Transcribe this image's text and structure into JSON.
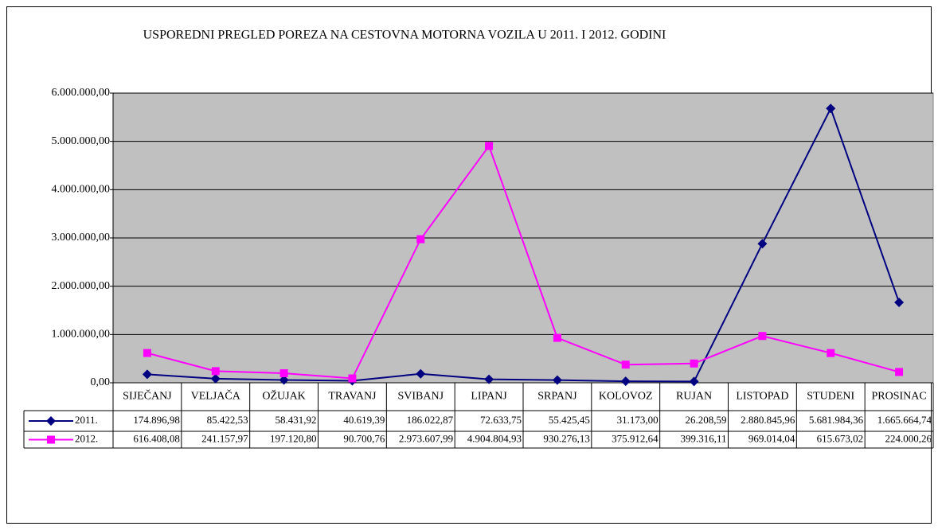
{
  "chart_data": {
    "type": "line",
    "title": "USPOREDNI PREGLED POREZA NA CESTOVNA MOTORNA VOZILA U 2011. I 2012. GODINI",
    "categories": [
      "SIJEČANJ",
      "VELJAČA",
      "OŽUJAK",
      "TRAVANJ",
      "SVIBANJ",
      "LIPANJ",
      "SRPANJ",
      "KOLOVOZ",
      "RUJAN",
      "LISTOPAD",
      "STUDENI",
      "PROSINAC"
    ],
    "series": [
      {
        "name": "2011.",
        "color": "#000080",
        "marker": "diamond",
        "values": [
          174896.98,
          85422.53,
          58431.92,
          40619.39,
          186022.87,
          72633.75,
          55425.45,
          31173.0,
          26208.59,
          2880845.96,
          5681984.36,
          1665664.74
        ],
        "value_labels": [
          "174.896,98",
          "85.422,53",
          "58.431,92",
          "40.619,39",
          "186.022,87",
          "72.633,75",
          "55.425,45",
          "31.173,00",
          "26.208,59",
          "2.880.845,96",
          "5.681.984,36",
          "1.665.664,74"
        ]
      },
      {
        "name": "2012.",
        "color": "#ff00ff",
        "marker": "square",
        "values": [
          616408.08,
          241157.97,
          197120.8,
          90700.76,
          2973607.99,
          4904804.93,
          930276.13,
          375912.64,
          399316.11,
          969014.04,
          615673.02,
          224000.26
        ],
        "value_labels": [
          "616.408,08",
          "241.157,97",
          "197.120,80",
          "90.700,76",
          "2.973.607,99",
          "4.904.804,93",
          "930.276,13",
          "375.912,64",
          "399.316,11",
          "969.014,04",
          "615.673,02",
          "224.000,26"
        ]
      }
    ],
    "ylim": [
      0,
      6000000
    ],
    "yticks": [
      {
        "value": 0,
        "label": "0,00"
      },
      {
        "value": 1000000,
        "label": "1.000.000,00"
      },
      {
        "value": 2000000,
        "label": "2.000.000,00"
      },
      {
        "value": 3000000,
        "label": "3.000.000,00"
      },
      {
        "value": 4000000,
        "label": "4.000.000,00"
      },
      {
        "value": 5000000,
        "label": "5.000.000,00"
      },
      {
        "value": 6000000,
        "label": "6.000.000,00"
      }
    ],
    "grid": true,
    "plot_background": "#c0c0c0"
  }
}
